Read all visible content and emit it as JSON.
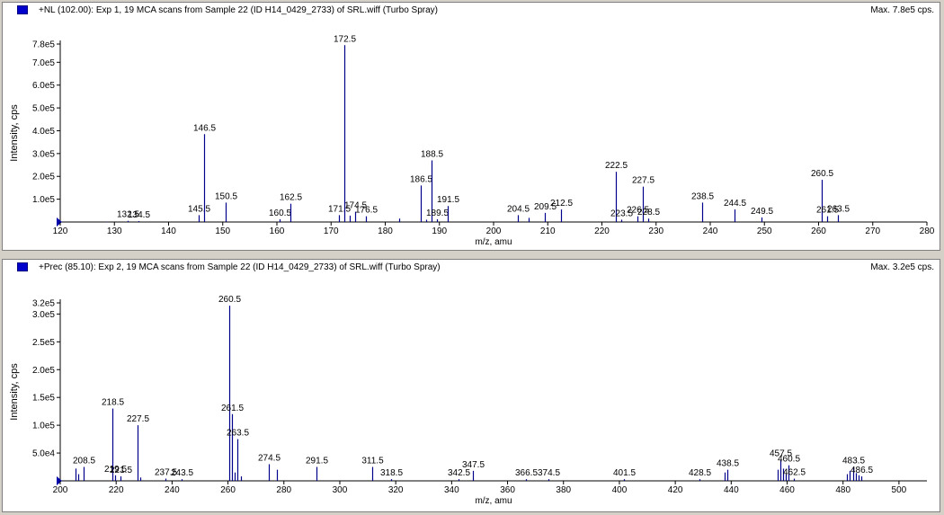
{
  "charts": [
    {
      "title": "+NL (102.00): Exp 1, 19 MCA scans from Sample 22 (ID H14_0429_2733) of SRL.wiff (Turbo Spray)",
      "max_label": "Max. 7.8e5 cps."
    },
    {
      "title": "+Prec (85.10): Exp 2, 19 MCA scans from Sample 22 (ID H14_0429_2733) of SRL.wiff (Turbo Spray)",
      "max_label": "Max. 3.2e5 cps."
    }
  ],
  "colors": {
    "series": "#00008b",
    "swatch": "#0000cc",
    "axis": "#000000"
  },
  "chart_data": [
    {
      "type": "bar",
      "xlabel": "m/z, amu",
      "ylabel": "Intensity, cps",
      "xlim": [
        120,
        280
      ],
      "ylim": [
        0,
        780000
      ],
      "xticks": [
        120,
        130,
        140,
        150,
        160,
        170,
        180,
        190,
        200,
        210,
        220,
        230,
        240,
        250,
        260,
        270,
        280
      ],
      "yticks": [
        {
          "v": 100000,
          "t": "1.0e5"
        },
        {
          "v": 200000,
          "t": "2.0e5"
        },
        {
          "v": 300000,
          "t": "3.0e5"
        },
        {
          "v": 400000,
          "t": "4.0e5"
        },
        {
          "v": 500000,
          "t": "5.0e5"
        },
        {
          "v": 600000,
          "t": "6.0e5"
        },
        {
          "v": 700000,
          "t": "7.0e5"
        },
        {
          "v": 780000,
          "t": "7.8e5"
        }
      ],
      "peaks": [
        {
          "mz": 128.5,
          "y": 2000
        },
        {
          "mz": 132.5,
          "y": 5000,
          "label": "132.5"
        },
        {
          "mz": 134.5,
          "y": 4000,
          "label": "134.5"
        },
        {
          "mz": 145.5,
          "y": 30000,
          "label": "145.5"
        },
        {
          "mz": 146.5,
          "y": 385000,
          "label": "146.5"
        },
        {
          "mz": 150.5,
          "y": 85000,
          "label": "150.5"
        },
        {
          "mz": 160.5,
          "y": 12000,
          "label": "160.5"
        },
        {
          "mz": 162.5,
          "y": 80000,
          "label": "162.5"
        },
        {
          "mz": 171.5,
          "y": 30000,
          "label": "171.5"
        },
        {
          "mz": 172.5,
          "y": 775000,
          "label": "172.5"
        },
        {
          "mz": 173.5,
          "y": 28000
        },
        {
          "mz": 174.5,
          "y": 45000,
          "label": "174.5"
        },
        {
          "mz": 176.5,
          "y": 25000,
          "label": "176.5"
        },
        {
          "mz": 182.5,
          "y": 15000
        },
        {
          "mz": 186.5,
          "y": 160000,
          "label": "186.5"
        },
        {
          "mz": 187.5,
          "y": 10000
        },
        {
          "mz": 188.5,
          "y": 270000,
          "label": "188.5"
        },
        {
          "mz": 189.5,
          "y": 12000,
          "label": "189.5"
        },
        {
          "mz": 191.5,
          "y": 70000,
          "label": "191.5"
        },
        {
          "mz": 204.5,
          "y": 30000,
          "label": "204.5"
        },
        {
          "mz": 206.5,
          "y": 18000
        },
        {
          "mz": 209.5,
          "y": 40000,
          "label": "209.5"
        },
        {
          "mz": 212.5,
          "y": 55000,
          "label": "212.5"
        },
        {
          "mz": 222.5,
          "y": 220000,
          "label": "222.5"
        },
        {
          "mz": 223.5,
          "y": 10000,
          "label": "223.5"
        },
        {
          "mz": 226.5,
          "y": 25000,
          "label": "226.5"
        },
        {
          "mz": 227.5,
          "y": 155000,
          "label": "227.5"
        },
        {
          "mz": 228.5,
          "y": 15000,
          "label": "228.5"
        },
        {
          "mz": 238.5,
          "y": 85000,
          "label": "238.5"
        },
        {
          "mz": 244.5,
          "y": 55000,
          "label": "244.5"
        },
        {
          "mz": 249.5,
          "y": 20000,
          "label": "249.5"
        },
        {
          "mz": 260.5,
          "y": 185000,
          "label": "260.5"
        },
        {
          "mz": 261.5,
          "y": 25000,
          "label": "261.5"
        },
        {
          "mz": 263.5,
          "y": 30000,
          "label": "263.5"
        }
      ]
    },
    {
      "type": "bar",
      "xlabel": "m/z, amu",
      "ylabel": "Intensity, cps",
      "xlim": [
        200,
        510
      ],
      "ylim": [
        0,
        320000
      ],
      "xticks": [
        200,
        220,
        240,
        260,
        280,
        300,
        320,
        340,
        360,
        380,
        400,
        420,
        440,
        460,
        480,
        500
      ],
      "yticks": [
        {
          "v": 50000,
          "t": "5.0e4"
        },
        {
          "v": 100000,
          "t": "1.0e5"
        },
        {
          "v": 150000,
          "t": "1.5e5"
        },
        {
          "v": 200000,
          "t": "2.0e5"
        },
        {
          "v": 250000,
          "t": "2.5e5"
        },
        {
          "v": 300000,
          "t": "3.0e5"
        },
        {
          "v": 320000,
          "t": "3.2e5"
        }
      ],
      "peaks": [
        {
          "mz": 205.5,
          "y": 22000
        },
        {
          "mz": 206.5,
          "y": 12000
        },
        {
          "mz": 208.5,
          "y": 25000,
          "label": "208.5"
        },
        {
          "mz": 218.5,
          "y": 130000,
          "label": "218.5"
        },
        {
          "mz": 219.5,
          "y": 10000,
          "label": "219.5"
        },
        {
          "mz": 221.5,
          "y": 8000,
          "label": "221.5"
        },
        {
          "mz": 227.5,
          "y": 100000,
          "label": "227.5"
        },
        {
          "mz": 228.5,
          "y": 6000
        },
        {
          "mz": 237.5,
          "y": 4000,
          "label": "237.5"
        },
        {
          "mz": 243.5,
          "y": 3000,
          "label": "243.5"
        },
        {
          "mz": 260.5,
          "y": 315000,
          "label": "260.5"
        },
        {
          "mz": 261.5,
          "y": 120000,
          "label": "261.5"
        },
        {
          "mz": 262.5,
          "y": 15000
        },
        {
          "mz": 263.5,
          "y": 75000,
          "label": "263.5"
        },
        {
          "mz": 264.5,
          "y": 8000
        },
        {
          "mz": 274.5,
          "y": 30000,
          "label": "274.5"
        },
        {
          "mz": 277.5,
          "y": 20000
        },
        {
          "mz": 291.5,
          "y": 25000,
          "label": "291.5"
        },
        {
          "mz": 311.5,
          "y": 25000,
          "label": "311.5"
        },
        {
          "mz": 318.5,
          "y": 3000,
          "label": "318.5"
        },
        {
          "mz": 342.5,
          "y": 3000,
          "label": "342.5"
        },
        {
          "mz": 347.5,
          "y": 18000,
          "label": "347.5"
        },
        {
          "mz": 366.5,
          "y": 3000,
          "label": "366.5"
        },
        {
          "mz": 374.5,
          "y": 3000,
          "label": "374.5"
        },
        {
          "mz": 401.5,
          "y": 3000,
          "label": "401.5"
        },
        {
          "mz": 428.5,
          "y": 3000,
          "label": "428.5"
        },
        {
          "mz": 437.5,
          "y": 15000
        },
        {
          "mz": 438.5,
          "y": 20000,
          "label": "438.5"
        },
        {
          "mz": 456.5,
          "y": 20000
        },
        {
          "mz": 457.5,
          "y": 38000,
          "label": "457.5"
        },
        {
          "mz": 458.5,
          "y": 22000
        },
        {
          "mz": 459.5,
          "y": 12000
        },
        {
          "mz": 460.5,
          "y": 28000,
          "label": "460.5"
        },
        {
          "mz": 462.5,
          "y": 4000,
          "label": "462.5"
        },
        {
          "mz": 481.5,
          "y": 12000
        },
        {
          "mz": 482.5,
          "y": 18000
        },
        {
          "mz": 483.5,
          "y": 25000,
          "label": "483.5"
        },
        {
          "mz": 484.5,
          "y": 14000
        },
        {
          "mz": 485.5,
          "y": 10000
        },
        {
          "mz": 486.5,
          "y": 8000,
          "label": "486.5"
        }
      ]
    }
  ]
}
